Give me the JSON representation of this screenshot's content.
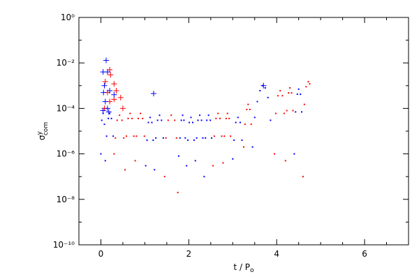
{
  "chart_data": {
    "type": "scatter",
    "x_label": {
      "text": "t / P",
      "subscript": "o"
    },
    "y_label": {
      "symbol": "σ",
      "superscript": "y",
      "subscript": "com"
    },
    "xlim": [
      -0.5,
      7
    ],
    "xticks": [
      0,
      2,
      4,
      6
    ],
    "xminor_ticks": [
      -0.5,
      0.5,
      1,
      1.5,
      2.5,
      3,
      3.5,
      4.5,
      5,
      5.5,
      6.5,
      7
    ],
    "ylim": [
      1e-10,
      1
    ],
    "log_y": true,
    "yticks": [
      {
        "value": 1e-10,
        "label": "10⁻¹⁰"
      },
      {
        "value": 1e-08,
        "label": "10⁻⁸"
      },
      {
        "value": 1e-06,
        "label": "10⁻⁶"
      },
      {
        "value": 0.0001,
        "label": "10⁻⁴"
      },
      {
        "value": 0.01,
        "label": "10⁻²"
      },
      {
        "value": 1,
        "label": "10⁰"
      }
    ],
    "yminor_ticks": [
      1e-09,
      1e-07,
      1e-05,
      0.001,
      0.1
    ],
    "series": [
      {
        "color": "#ff0000",
        "marker": "dot",
        "x": [
          0.3,
          0.33,
          0.37,
          0.425,
          0.48,
          0.52,
          0.55,
          0.58,
          0.62,
          0.665,
          0.71,
          0.75,
          0.78,
          0.81,
          0.85,
          0.9,
          0.95,
          0.99,
          1.45,
          1.48,
          1.53,
          1.6,
          1.68,
          1.72,
          1.75,
          2.55,
          2.58,
          2.62,
          2.665,
          2.71,
          2.75,
          2.78,
          2.81,
          2.85,
          2.88,
          2.92,
          2.95,
          3.25,
          3.28,
          3.32,
          3.35,
          3.39,
          3.42,
          3.95,
          3.98,
          4.03,
          4.08,
          4.13,
          4.17,
          4.2,
          4.23,
          4.27,
          4.3,
          4.34,
          4.37,
          4.6,
          4.63,
          4.67,
          4.72,
          4.75
        ],
        "values": [
          1e-06,
          5e-06,
          3e-05,
          5e-05,
          3e-05,
          5e-06,
          2e-07,
          6e-06,
          3.6e-05,
          6e-05,
          3.6e-05,
          6e-06,
          5e-07,
          6e-06,
          3.6e-05,
          6e-05,
          3.6e-05,
          6e-06,
          1e-07,
          5e-06,
          3e-05,
          5e-05,
          3e-05,
          5e-06,
          2e-08,
          3e-07,
          6e-06,
          3.6e-05,
          6e-05,
          3.6e-05,
          6e-06,
          4e-07,
          6e-06,
          3.6e-05,
          6e-05,
          3.6e-05,
          6e-06,
          2e-06,
          2e-05,
          9e-05,
          0.00015,
          9e-05,
          2e-05,
          1e-06,
          6e-05,
          0.00036,
          0.0006,
          0.00036,
          6e-05,
          5e-07,
          8e-05,
          0.00048,
          0.0008,
          0.00048,
          8e-05,
          1e-07,
          0.00015,
          0.0009,
          0.0015,
          0.0012
        ]
      },
      {
        "color": "#0000ff",
        "marker": "dot",
        "x": [
          0.0,
          0.02,
          0.05,
          0.08,
          0.1,
          0.13,
          0.17,
          0.2,
          0.24,
          0.28,
          1.02,
          1.05,
          1.08,
          1.12,
          1.16,
          1.19,
          1.22,
          1.25,
          1.29,
          1.335,
          1.38,
          1.42,
          1.77,
          1.8,
          1.83,
          1.86,
          1.89,
          1.92,
          1.95,
          1.98,
          2.01,
          2.05,
          2.09,
          2.12,
          2.15,
          2.18,
          2.21,
          2.25,
          2.29,
          2.32,
          2.35,
          2.38,
          2.41,
          2.45,
          2.49,
          2.52,
          3.0,
          3.03,
          3.07,
          3.12,
          3.17,
          3.21,
          3.45,
          3.5,
          3.56,
          3.62,
          3.68,
          3.74,
          3.8,
          3.86,
          4.4,
          4.43,
          4.47,
          4.5,
          4.54,
          4.57
        ],
        "values": [
          1e-06,
          3e-05,
          6e-05,
          2e-05,
          5e-07,
          6e-06,
          3.6e-05,
          6e-05,
          3.6e-05,
          6e-06,
          3e-07,
          4e-06,
          2.4e-05,
          4e-05,
          2.4e-05,
          4e-06,
          2e-07,
          5e-06,
          3e-05,
          5e-05,
          3e-05,
          5e-06,
          8e-07,
          5e-06,
          3e-05,
          5e-05,
          3e-05,
          5e-06,
          3e-07,
          4e-06,
          2.4e-05,
          4e-05,
          2.4e-05,
          4e-06,
          5e-07,
          5e-06,
          3e-05,
          5e-05,
          3e-05,
          5e-06,
          1e-07,
          5e-06,
          3e-05,
          5e-05,
          3e-05,
          5e-06,
          6e-07,
          4e-06,
          2.4e-05,
          4e-05,
          2.4e-05,
          4e-06,
          2e-06,
          4e-05,
          0.0002,
          0.0006,
          0.001,
          0.0008,
          0.0003,
          3e-05,
          1e-06,
          7e-05,
          0.00042,
          0.0007,
          0.00042,
          7e-05
        ]
      },
      {
        "color": "#ff0000",
        "marker": "plus",
        "x": [
          0.2,
          0.22,
          0.1,
          0.3,
          0.35,
          0.3,
          0.45,
          0.5,
          0.15,
          0.2,
          0.08
        ],
        "values": [
          0.005,
          0.003,
          0.0015,
          0.0012,
          0.0006,
          0.00025,
          0.0003,
          0.0001,
          0.0005,
          0.0002,
          0.0001
        ]
      },
      {
        "color": "#0000ff",
        "marker": "plus",
        "x": [
          0.12,
          0.05,
          0.15,
          0.08,
          0.06,
          0.2,
          0.3,
          0.1,
          0.15,
          1.2,
          3.7,
          0.05,
          0.18
        ],
        "values": [
          0.013,
          0.004,
          0.004,
          0.001,
          0.0005,
          0.0006,
          0.0004,
          0.0002,
          0.0001,
          0.00045,
          0.001,
          8e-05,
          7e-05
        ]
      }
    ]
  }
}
